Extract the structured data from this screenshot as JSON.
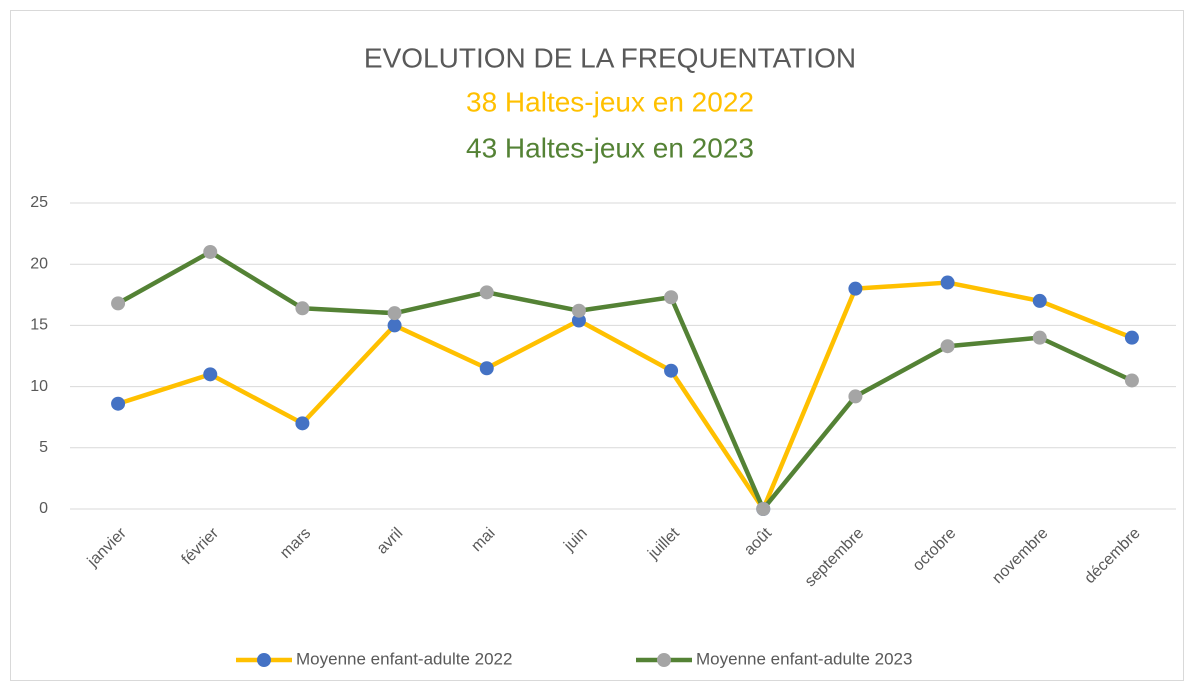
{
  "chart_data": {
    "type": "line",
    "title": "EVOLUTION DE LA FREQUENTATION",
    "title_color": "#595959",
    "subtitles": [
      {
        "text": "38 Haltes-jeux en 2022",
        "color": "#ffc000"
      },
      {
        "text": "43 Haltes-jeux en 2023",
        "color": "#548235"
      }
    ],
    "categories": [
      "janvier",
      "février",
      "mars",
      "avril",
      "mai",
      "juin",
      "juillet",
      "août",
      "septembre",
      "octobre",
      "novembre",
      "décembre"
    ],
    "series": [
      {
        "name": "Moyenne enfant-adulte 2022",
        "color": "#ffc000",
        "marker_color": "#4472c4",
        "values": [
          8.6,
          11,
          7,
          15,
          11.5,
          15.4,
          11.3,
          0,
          18,
          18.5,
          17,
          14
        ]
      },
      {
        "name": "Moyenne enfant-adulte 2023",
        "color": "#548235",
        "marker_color": "#a5a5a5",
        "values": [
          16.8,
          21,
          16.4,
          16,
          17.7,
          16.2,
          17.3,
          0,
          9.2,
          13.3,
          14,
          10.5
        ]
      }
    ],
    "ylim": [
      0,
      25
    ],
    "yticks": [
      0,
      5,
      10,
      15,
      20,
      25
    ],
    "grid": true,
    "legend": "bottom"
  }
}
